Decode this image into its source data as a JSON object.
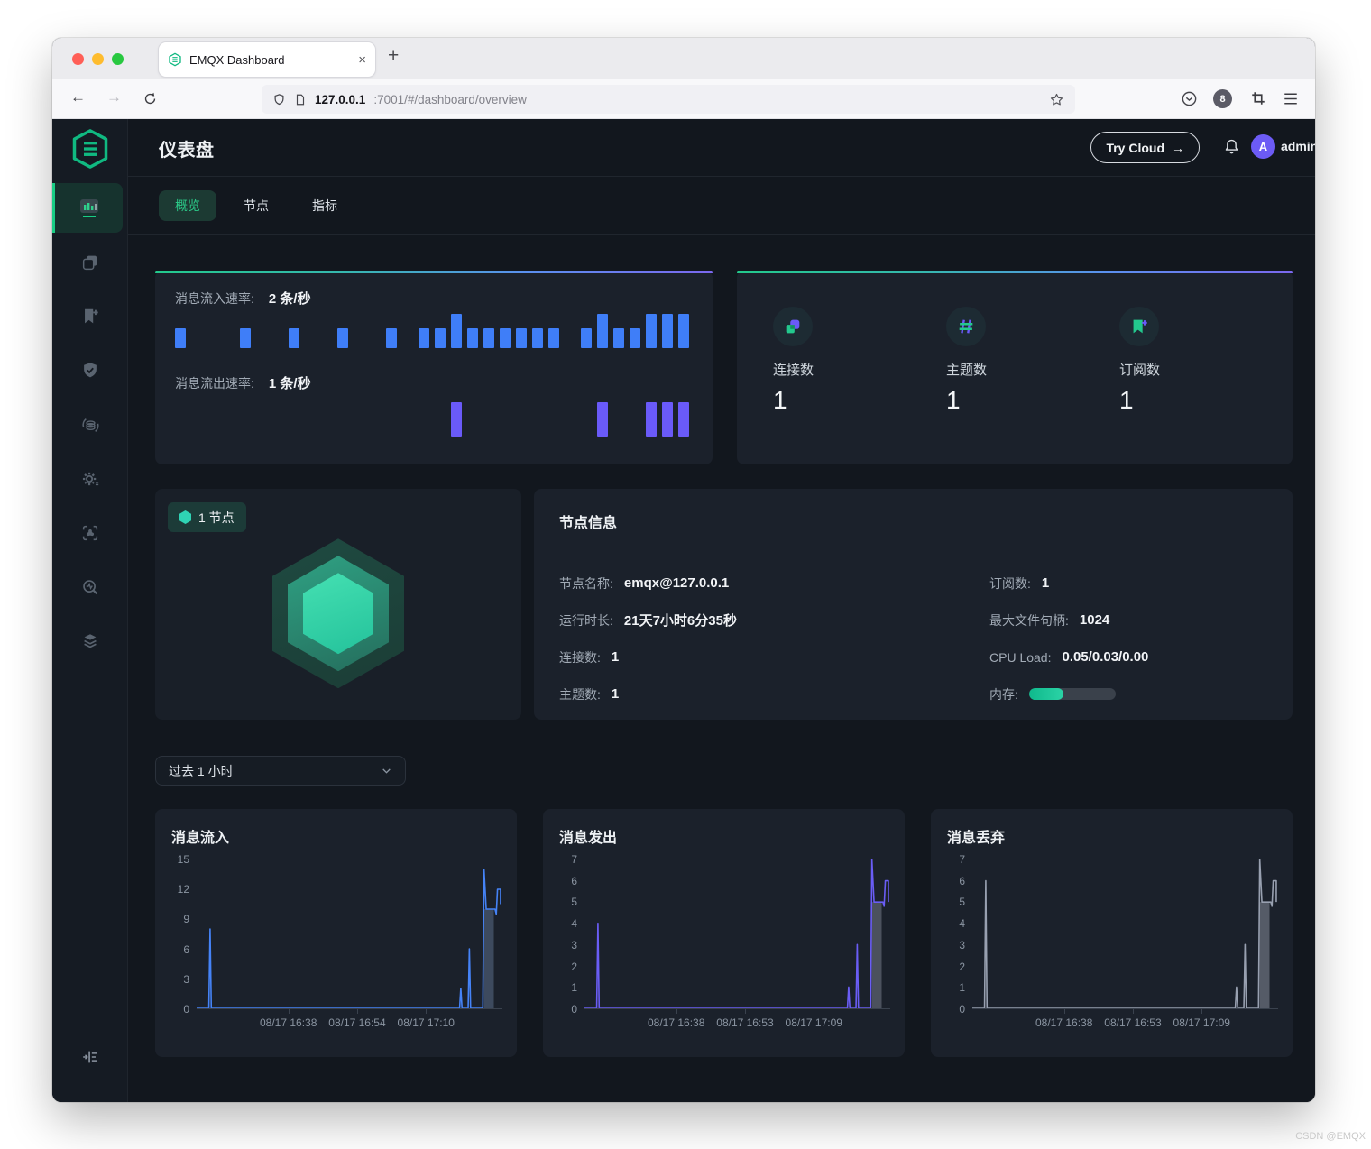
{
  "watermark": "CSDN @EMQX",
  "browser": {
    "tab_title": "EMQX Dashboard",
    "close_glyph": "×",
    "new_tab_glyph": "+",
    "url_host": "127.0.0.1",
    "url_rest": ":7001/#/dashboard/overview",
    "badge_count": "8",
    "icons": [
      "back",
      "forward",
      "reload",
      "tracking-shield",
      "page",
      "star",
      "pocket",
      "extension-badge",
      "screenshot",
      "menu"
    ]
  },
  "sidebar": {
    "icons": [
      "dashboard",
      "connections",
      "subscriptions",
      "access-control",
      "data-integration",
      "management",
      "extensions",
      "diagnose",
      "system",
      "collapse"
    ]
  },
  "header": {
    "title": "仪表盘",
    "try_cloud_label": "Try Cloud",
    "try_cloud_arrow": "→",
    "user": "admin",
    "avatar_letter": "A"
  },
  "nav_tabs": [
    {
      "label": "概览"
    },
    {
      "label": "节点"
    },
    {
      "label": "指标"
    }
  ],
  "rate_card": {
    "in_label": "消息流入速率:",
    "in_value": "2 条/秒",
    "out_label": "消息流出速率:",
    "out_value": "1 条/秒",
    "bar_color_in": "#3f7ef8",
    "bar_color_out": "#6a5af9",
    "in_bars": [
      1,
      0,
      0,
      0,
      1,
      0,
      0,
      1,
      0,
      0,
      1,
      0,
      0,
      1,
      0,
      1,
      1,
      2,
      1,
      1,
      1,
      1,
      1,
      1,
      0,
      1,
      2,
      1,
      1,
      2,
      2,
      2
    ],
    "out_bars": [
      0,
      0,
      0,
      0,
      0,
      0,
      0,
      0,
      0,
      0,
      0,
      0,
      0,
      0,
      0,
      0,
      0,
      1,
      0,
      0,
      0,
      0,
      0,
      0,
      0,
      0,
      1,
      0,
      0,
      1,
      1,
      1
    ]
  },
  "stats_card": {
    "items": [
      {
        "icon": "connections-icon",
        "label": "连接数",
        "value": "1"
      },
      {
        "icon": "topics-icon",
        "label": "主题数",
        "value": "1"
      },
      {
        "icon": "subscriptions-icon",
        "label": "订阅数",
        "value": "1"
      }
    ]
  },
  "node_card": {
    "badge": "1 节点",
    "info_title": "节点信息",
    "left_rows": [
      {
        "label": "节点名称:",
        "value": "emqx@127.0.0.1"
      },
      {
        "label": "运行时长:",
        "value": "21天7小时6分35秒"
      },
      {
        "label": "连接数:",
        "value": "1"
      },
      {
        "label": "主题数:",
        "value": "1"
      }
    ],
    "right_rows": [
      {
        "label": "订阅数:",
        "value": "1"
      },
      {
        "label": "最大文件句柄:",
        "value": "1024"
      },
      {
        "label": "CPU Load:",
        "value": "0.05/0.03/0.00"
      }
    ],
    "memory_label": "内存:",
    "memory_percent": 40
  },
  "time_select": {
    "value": "过去 1 小时"
  },
  "chart_data": [
    {
      "type": "line",
      "title": "消息流入",
      "color": "#4583f7",
      "shadow_color": "#5f7391",
      "ylim": [
        0,
        15
      ],
      "yticks": [
        15,
        12,
        9,
        6,
        3,
        0
      ],
      "xticks": [
        "08/17 16:38",
        "08/17 16:54",
        "08/17 17:10"
      ],
      "xtick_pos": [
        30,
        52.5,
        75
      ],
      "points": [
        [
          0,
          0
        ],
        [
          4,
          0
        ],
        [
          4.4,
          8
        ],
        [
          4.8,
          0
        ],
        [
          86,
          0
        ],
        [
          86.4,
          2
        ],
        [
          86.8,
          0
        ],
        [
          88.8,
          0
        ],
        [
          89.2,
          6
        ],
        [
          89.6,
          0
        ],
        [
          93.6,
          0
        ],
        [
          94,
          14
        ],
        [
          94.7,
          10
        ],
        [
          97.6,
          10
        ],
        [
          98,
          9.5
        ],
        [
          98.4,
          12
        ],
        [
          99.4,
          12
        ],
        [
          99.4,
          10.5
        ]
      ],
      "shadow": {
        "x": 94,
        "w": 3.2,
        "h": 10
      }
    },
    {
      "type": "line",
      "title": "消息发出",
      "color": "#6a5df5",
      "shadow_color": "#7c828f",
      "ylim": [
        0,
        7
      ],
      "yticks": [
        7,
        6,
        5,
        4,
        3,
        2,
        1,
        0
      ],
      "xticks": [
        "08/17 16:38",
        "08/17 16:53",
        "08/17 17:09"
      ],
      "xtick_pos": [
        30,
        52.5,
        75
      ],
      "points": [
        [
          0,
          0
        ],
        [
          4,
          0
        ],
        [
          4.4,
          4
        ],
        [
          4.8,
          0
        ],
        [
          86,
          0
        ],
        [
          86.4,
          1
        ],
        [
          86.8,
          0
        ],
        [
          88.8,
          0
        ],
        [
          89.2,
          3
        ],
        [
          89.6,
          0
        ],
        [
          93.6,
          0
        ],
        [
          94,
          7
        ],
        [
          94.7,
          5
        ],
        [
          97.6,
          5
        ],
        [
          98,
          4.8
        ],
        [
          98.4,
          6
        ],
        [
          99.4,
          6
        ],
        [
          99.4,
          5
        ]
      ],
      "shadow": {
        "x": 94,
        "w": 3.2,
        "h": 5
      }
    },
    {
      "type": "line",
      "title": "消息丢弃",
      "color": "#98a0b0",
      "shadow_color": "#8f96a4",
      "ylim": [
        0,
        7
      ],
      "yticks": [
        7,
        6,
        5,
        4,
        3,
        2,
        1,
        0
      ],
      "xticks": [
        "08/17 16:38",
        "08/17 16:53",
        "08/17 17:09"
      ],
      "xtick_pos": [
        30,
        52.5,
        75
      ],
      "points": [
        [
          0,
          0
        ],
        [
          4,
          0
        ],
        [
          4.4,
          6
        ],
        [
          4.8,
          0
        ],
        [
          86,
          0
        ],
        [
          86.4,
          1
        ],
        [
          86.8,
          0
        ],
        [
          88.8,
          0
        ],
        [
          89.2,
          3
        ],
        [
          89.6,
          0
        ],
        [
          93.6,
          0
        ],
        [
          94,
          7
        ],
        [
          94.7,
          5
        ],
        [
          97.6,
          5
        ],
        [
          98,
          4.8
        ],
        [
          98.4,
          6
        ],
        [
          99.4,
          6
        ],
        [
          99.4,
          5
        ]
      ],
      "shadow": {
        "x": 94,
        "w": 3.2,
        "h": 5
      }
    }
  ]
}
